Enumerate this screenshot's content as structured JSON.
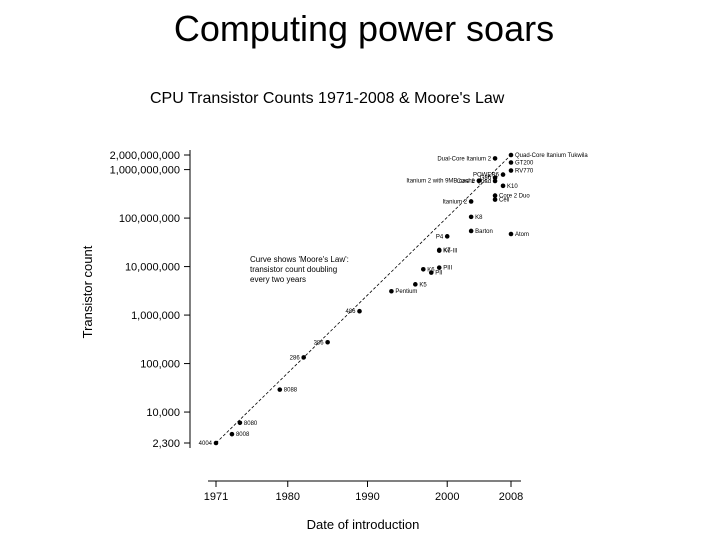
{
  "slide": {
    "title": "Computing power soars"
  },
  "chart_data": {
    "type": "scatter",
    "title": "CPU Transistor Counts 1971-2008 & Moore's Law",
    "xlabel": "Date of introduction",
    "ylabel": "Transistor count",
    "scale": {
      "y": "log"
    },
    "xlim": [
      1971,
      2008
    ],
    "ylim": [
      2300,
      2000000000
    ],
    "x_ticks": [
      1971,
      1980,
      1990,
      2000,
      2008
    ],
    "y_ticks": [
      {
        "value": 2300,
        "label": "2,300"
      },
      {
        "value": 10000,
        "label": "10,000"
      },
      {
        "value": 100000,
        "label": "100,000"
      },
      {
        "value": 1000000,
        "label": "1,000,000"
      },
      {
        "value": 10000000,
        "label": "10,000,000"
      },
      {
        "value": 100000000,
        "label": "100,000,000"
      },
      {
        "value": 1000000000,
        "label": "1,000,000,000"
      },
      {
        "value": 2000000000,
        "label": "2,000,000,000"
      }
    ],
    "annotation": [
      "Curve shows 'Moore's Law':",
      "transistor count doubling",
      "every two years"
    ],
    "trend_line": {
      "from": [
        1971,
        2300
      ],
      "to": [
        2008,
        2000000000
      ]
    },
    "points": [
      {
        "label": "4004",
        "x": 1971,
        "y": 2300,
        "side": "left"
      },
      {
        "label": "8008",
        "x": 1973,
        "y": 3500,
        "side": "right"
      },
      {
        "label": "8080",
        "x": 1974,
        "y": 6000,
        "side": "right"
      },
      {
        "label": "8088",
        "x": 1979,
        "y": 29000,
        "side": "right"
      },
      {
        "label": "286",
        "x": 1982,
        "y": 134000,
        "side": "left"
      },
      {
        "label": "386",
        "x": 1985,
        "y": 275000,
        "side": "left"
      },
      {
        "label": "486",
        "x": 1989,
        "y": 1200000,
        "side": "left"
      },
      {
        "label": "Pentium",
        "x": 1993,
        "y": 3100000,
        "side": "right"
      },
      {
        "label": "K5",
        "x": 1996,
        "y": 4300000,
        "side": "right"
      },
      {
        "label": "PII",
        "x": 1998,
        "y": 7500000,
        "side": "right"
      },
      {
        "label": "K6",
        "x": 1997,
        "y": 8800000,
        "side": "right"
      },
      {
        "label": "PIII",
        "x": 1999,
        "y": 9500000,
        "side": "right"
      },
      {
        "label": "K6-III",
        "x": 1999,
        "y": 21300000,
        "side": "right"
      },
      {
        "label": "K7",
        "x": 1999,
        "y": 22000000,
        "side": "right"
      },
      {
        "label": "P4",
        "x": 2000,
        "y": 42000000,
        "side": "left"
      },
      {
        "label": "Barton",
        "x": 2003,
        "y": 54300000,
        "side": "right"
      },
      {
        "label": "Atom",
        "x": 2008,
        "y": 47000000,
        "side": "right"
      },
      {
        "label": "K8",
        "x": 2003,
        "y": 105900000,
        "side": "right"
      },
      {
        "label": "Itanium 2",
        "x": 2003,
        "y": 220000000,
        "side": "left"
      },
      {
        "label": "Cell",
        "x": 2006,
        "y": 241000000,
        "side": "right"
      },
      {
        "label": "Core 2 Duo",
        "x": 2006,
        "y": 291000000,
        "side": "right"
      },
      {
        "label": "Core 2 Quad",
        "x": 2006,
        "y": 582000000,
        "side": "left"
      },
      {
        "label": "K10",
        "x": 2007,
        "y": 463000000,
        "side": "right"
      },
      {
        "label": "Itanium 2 with 9MB cache",
        "x": 2004,
        "y": 592000000,
        "side": "left"
      },
      {
        "label": "G80",
        "x": 2006,
        "y": 681000000,
        "side": "left"
      },
      {
        "label": "POWER6",
        "x": 2007,
        "y": 789000000,
        "side": "left"
      },
      {
        "label": "Dual-Core Itanium 2",
        "x": 2006,
        "y": 1700000000,
        "side": "left"
      },
      {
        "label": "RV770",
        "x": 2008,
        "y": 956000000,
        "side": "right"
      },
      {
        "label": "GT200",
        "x": 2008,
        "y": 1400000000,
        "side": "right"
      },
      {
        "label": "Quad-Core Itanium Tukwila",
        "x": 2008,
        "y": 2000000000,
        "side": "right"
      }
    ]
  }
}
